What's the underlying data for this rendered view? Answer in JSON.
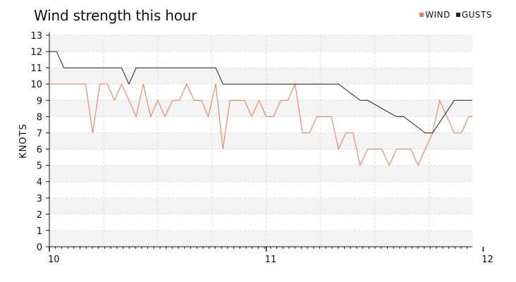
{
  "chart_data": {
    "type": "line",
    "title": "Wind strength this hour",
    "ylabel": "KNOTS",
    "xlabel": "",
    "ylim": [
      0,
      13
    ],
    "yticks": [
      0,
      1,
      2,
      3,
      4,
      5,
      6,
      7,
      8,
      9,
      10,
      11,
      12,
      13
    ],
    "xlim": [
      10,
      11.95
    ],
    "xticks": [
      10,
      11,
      12
    ],
    "grid": true,
    "legend_position": "top-right",
    "colors": {
      "wind": "#f07f5a",
      "gusts": "#222222",
      "band": "#f3f3f3",
      "grid": "#dddddd"
    },
    "series": [
      {
        "name": "WIND",
        "color": "#f07f5a",
        "x": [
          10.0,
          10.167,
          10.2,
          10.233,
          10.267,
          10.3,
          10.333,
          10.367,
          10.4,
          10.433,
          10.467,
          10.5,
          10.533,
          10.567,
          10.6,
          10.633,
          10.667,
          10.7,
          10.733,
          10.767,
          10.8,
          10.833,
          10.867,
          10.9,
          10.933,
          10.967,
          11.0,
          11.033,
          11.067,
          11.1,
          11.133,
          11.167,
          11.2,
          11.233,
          11.267,
          11.3,
          11.333,
          11.367,
          11.4,
          11.433,
          11.467,
          11.5,
          11.533,
          11.567,
          11.6,
          11.633,
          11.667,
          11.7,
          11.733,
          11.767,
          11.8,
          11.833,
          11.867,
          11.9,
          11.933,
          11.95
        ],
        "y": [
          10,
          10,
          7,
          10,
          10,
          9,
          10,
          9,
          8,
          10,
          8,
          9,
          8,
          9,
          9,
          10,
          9,
          9,
          8,
          10,
          6,
          9,
          9,
          9,
          8,
          9,
          8,
          8,
          9,
          9,
          10,
          7,
          7,
          8,
          8,
          8,
          6,
          7,
          7,
          5,
          6,
          6,
          6,
          5,
          6,
          6,
          6,
          5,
          6,
          7,
          9,
          8,
          7,
          7,
          8,
          8
        ]
      },
      {
        "name": "GUSTS",
        "color": "#222222",
        "x": [
          10.0,
          10.033,
          10.067,
          10.333,
          10.367,
          10.4,
          10.767,
          10.8,
          11.3,
          11.333,
          11.433,
          11.467,
          11.6,
          11.633,
          11.733,
          11.767,
          11.867,
          11.9,
          11.95
        ],
        "y": [
          12,
          12,
          11,
          11,
          10,
          11,
          11,
          10,
          10,
          10,
          9,
          9,
          8,
          8,
          7,
          7,
          9,
          9,
          9
        ]
      }
    ]
  }
}
